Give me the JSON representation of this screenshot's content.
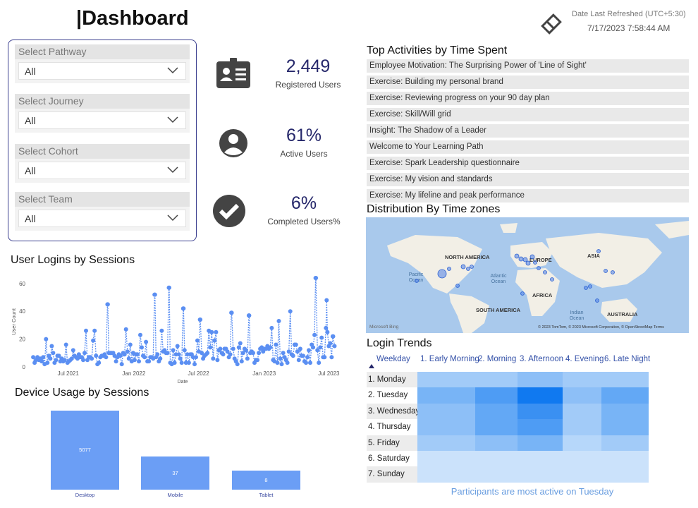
{
  "header": {
    "title": "|Dashboard",
    "refresh_label": "Date Last Refreshed (UTC+5:30)",
    "refresh_value": "7/17/2023 7:58:44 AM"
  },
  "filters": [
    {
      "label": "Select Pathway",
      "value": "All"
    },
    {
      "label": "Select Journey",
      "value": "All"
    },
    {
      "label": "Select Cohort",
      "value": "All"
    },
    {
      "label": "Select Team",
      "value": "All"
    }
  ],
  "kpis": [
    {
      "value": "2,449",
      "label": "Registered Users",
      "icon": "id-card-icon"
    },
    {
      "value": "61%",
      "label": "Active Users",
      "icon": "user-circle-icon"
    },
    {
      "value": "6%",
      "label": "Completed Users%",
      "icon": "check-circle-icon"
    }
  ],
  "activities": {
    "title": "Top Activities by Time Spent",
    "items": [
      "Employee Motivation: The Surprising Power of 'Line of Sight'",
      "Exercise: Building my personal brand",
      "Exercise: Reviewing progress on your 90 day plan",
      "Exercise: Skill/Will grid",
      "Insight: The Shadow of a Leader",
      "Welcome to Your Learning Path",
      "Exercise: Spark Leadership questionnaire",
      "Exercise: My vision and standards",
      "Exercise: My lifeline and peak performance"
    ]
  },
  "map": {
    "title": "Distribution By Time zones",
    "continents": [
      "NORTH AMERICA",
      "EUROPE",
      "ASIA",
      "AFRICA",
      "SOUTH AMERICA",
      "AUSTRALIA"
    ],
    "oceans": [
      "Pacific Ocean",
      "Atlantic Ocean",
      "Indian Ocean"
    ],
    "logo": "Microsoft Bing",
    "copyright": "© 2023 TomTom, © 2023 Microsoft Corporation, © OpenStreetMap  Terms"
  },
  "logins_title": "User Logins by Sessions",
  "device_title": "Device Usage by Sessions",
  "trends": {
    "title": "Login Trends",
    "weekday_header": "Weekday",
    "insight": "Participants are most active on Tuesday"
  },
  "colors": {
    "bar": "#6b9ef5",
    "line": "#5b8ff2",
    "accent": "#26286b",
    "panel_border": "#3b3f8f"
  },
  "chart_data": [
    {
      "type": "line",
      "id": "user-logins",
      "title": "User Logins by Sessions",
      "xlabel": "Date",
      "ylabel": "User Count",
      "ylim": [
        0,
        65
      ],
      "yticks": [
        0,
        20,
        40,
        60
      ],
      "xticks": [
        "Jul 2021",
        "Jan 2022",
        "Jul 2022",
        "Jan 2023",
        "Jul 2023"
      ],
      "xtick_dates": [
        "2021-07-01",
        "2022-01-01",
        "2022-07-01",
        "2023-01-01",
        "2023-07-01"
      ],
      "xlim": [
        "2021-03-15",
        "2023-07-20"
      ],
      "peaks": [
        {
          "date": "2021-08-20",
          "value": 26
        },
        {
          "date": "2021-10-20",
          "value": 45
        },
        {
          "date": "2021-12-10",
          "value": 27
        },
        {
          "date": "2022-03-01",
          "value": 52
        },
        {
          "date": "2022-04-10",
          "value": 57
        },
        {
          "date": "2022-05-20",
          "value": 42
        },
        {
          "date": "2022-07-05",
          "value": 34
        },
        {
          "date": "2022-10-01",
          "value": 39
        },
        {
          "date": "2022-11-20",
          "value": 37
        },
        {
          "date": "2023-03-15",
          "value": 40
        },
        {
          "date": "2023-05-25",
          "value": 64
        },
        {
          "date": "2023-06-25",
          "value": 48
        },
        {
          "date": "2023-07-12",
          "value": 22
        }
      ]
    },
    {
      "type": "bar",
      "id": "device-usage",
      "title": "Device Usage by Sessions",
      "categories": [
        "Desktop",
        "Mobile",
        "Tablet"
      ],
      "values": [
        5077,
        37,
        8
      ],
      "data_labels": [
        "5077",
        "37",
        "8"
      ]
    },
    {
      "type": "heatmap",
      "id": "login-trends",
      "title": "Login Trends",
      "rows": [
        "1. Monday",
        "2. Tuesday",
        "3. Wednesday",
        "4. Thursday",
        "5. Friday",
        "6. Saturday",
        "7. Sunday"
      ],
      "columns": [
        "1. Early Morning",
        "2. Morning",
        "3. Afternoon",
        "4. Evening",
        "6. Late Night"
      ],
      "values": [
        [
          3,
          3,
          4,
          3,
          3
        ],
        [
          5,
          7,
          10,
          4,
          6
        ],
        [
          4,
          6,
          8,
          3,
          5
        ],
        [
          4,
          6,
          7,
          3,
          5
        ],
        [
          3,
          4,
          5,
          2,
          3
        ],
        [
          1,
          1,
          1,
          1,
          1
        ],
        [
          1,
          1,
          1,
          1,
          1
        ]
      ]
    }
  ]
}
